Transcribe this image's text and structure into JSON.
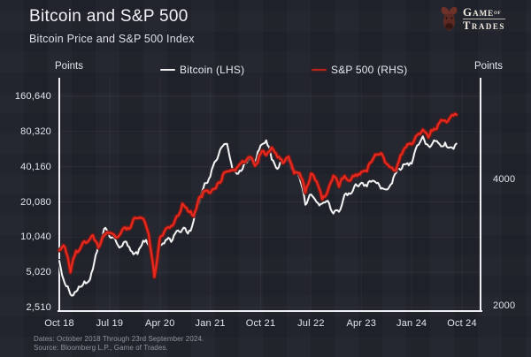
{
  "header": {
    "title": "Bitcoin and S&P 500",
    "subtitle": "Bitcoin Price and S&P 500 Index"
  },
  "logo": {
    "word1": "Game",
    "word2": "of",
    "word3": "Trades"
  },
  "legend": [
    {
      "label": "Bitcoin (LHS)",
      "color": "#f4f4f4"
    },
    {
      "label": "S&P 500 (RHS)",
      "color": "#e6281d"
    }
  ],
  "axes": {
    "left_title": "Points",
    "right_title": "Points",
    "left_ticks": [
      "160,640",
      "80,320",
      "40,160",
      "20,080",
      "10,040",
      "5,020",
      "2,510"
    ],
    "right_ticks": [
      "4000",
      "2000"
    ],
    "x_ticks": [
      "Oct 18",
      "Jul 19",
      "Apr 20",
      "Jan 21",
      "Oct 21",
      "Jul 22",
      "Apr 23",
      "Jan 24",
      "Oct 24"
    ]
  },
  "footer": {
    "dates": "Dates: October 2018 Through 23rd September 2024.",
    "source": "Source: Bloomberg L.P., Game of Trades."
  },
  "colors": {
    "background": "#20222c",
    "axis_line": "#eef0f4",
    "grid_line": "rgba(255,255,255,0.05)",
    "bitcoin_line": "#f4f4f4",
    "bitcoin_halo": "#2a2c34",
    "sp500_line": "#e6281d",
    "sp500_halo": "#6d1a17",
    "text": "#e1e5ec",
    "footer_text": "#8e939d"
  },
  "chart_data": {
    "type": "line",
    "title": "Bitcoin and S&P 500",
    "subtitle": "Bitcoin Price and S&P 500 Index",
    "x_unit": "month",
    "x_start": "2018-10",
    "x_end": "2024-09",
    "x_tick_labels": [
      "Oct 18",
      "Jul 19",
      "Apr 20",
      "Jan 21",
      "Oct 21",
      "Jul 22",
      "Apr 23",
      "Jan 24",
      "Oct 24"
    ],
    "x_tick_month_offsets": [
      0,
      9,
      18,
      27,
      36,
      45,
      54,
      63,
      72
    ],
    "left_axis": {
      "label": "Points",
      "scale": "log2",
      "ticks": [
        160640,
        80320,
        40160,
        20080,
        10040,
        5020,
        2510
      ],
      "range": [
        2510,
        160640
      ]
    },
    "right_axis": {
      "label": "Points",
      "scale": "log2",
      "ticks": [
        4000,
        2000
      ],
      "range": [
        2000,
        6000
      ]
    },
    "legend_position": "top",
    "grid": "faint",
    "series": [
      {
        "name": "Bitcoin (LHS)",
        "axis": "left",
        "color": "#f4f4f4",
        "halo": "#2a2c34",
        "values": [
          6300,
          4017,
          3250,
          3437,
          3814,
          4103,
          5320,
          8560,
          11800,
          10080,
          9630,
          8290,
          9150,
          7550,
          7190,
          9350,
          8530,
          5000,
          8620,
          9450,
          9140,
          11350,
          11650,
          10780,
          13800,
          19700,
          28990,
          33110,
          45140,
          58800,
          63000,
          37300,
          35040,
          41550,
          47150,
          43790,
          61300,
          67500,
          46210,
          38480,
          43190,
          45540,
          37710,
          31790,
          19000,
          23300,
          20050,
          19430,
          20490,
          16000,
          16540,
          23130,
          23470,
          28470,
          29230,
          27220,
          30470,
          29230,
          25930,
          26970,
          34660,
          37720,
          42270,
          42580,
          61200,
          73000,
          60640,
          67500,
          62680,
          64620,
          58970,
          63300
        ]
      },
      {
        "name": "S&P 500 (RHS)",
        "axis": "right",
        "color": "#e6281d",
        "halo": "#6d1a17",
        "values": [
          2712,
          2760,
          2400,
          2704,
          2784,
          2834,
          2946,
          2752,
          2942,
          2980,
          2926,
          2977,
          3038,
          3141,
          3231,
          3226,
          2954,
          2340,
          2912,
          3044,
          3100,
          3271,
          3500,
          3363,
          3270,
          3622,
          3756,
          3714,
          3811,
          3973,
          4181,
          4204,
          4298,
          4395,
          4523,
          4308,
          4605,
          4567,
          4766,
          4516,
          4374,
          4530,
          4132,
          4132,
          3720,
          4130,
          3955,
          3586,
          3750,
          4080,
          3840,
          4077,
          3970,
          4109,
          4169,
          4180,
          4450,
          4589,
          4508,
          4288,
          4194,
          4568,
          4770,
          4846,
          5096,
          5254,
          5036,
          5278,
          5460,
          5522,
          5648,
          5703
        ]
      }
    ]
  }
}
